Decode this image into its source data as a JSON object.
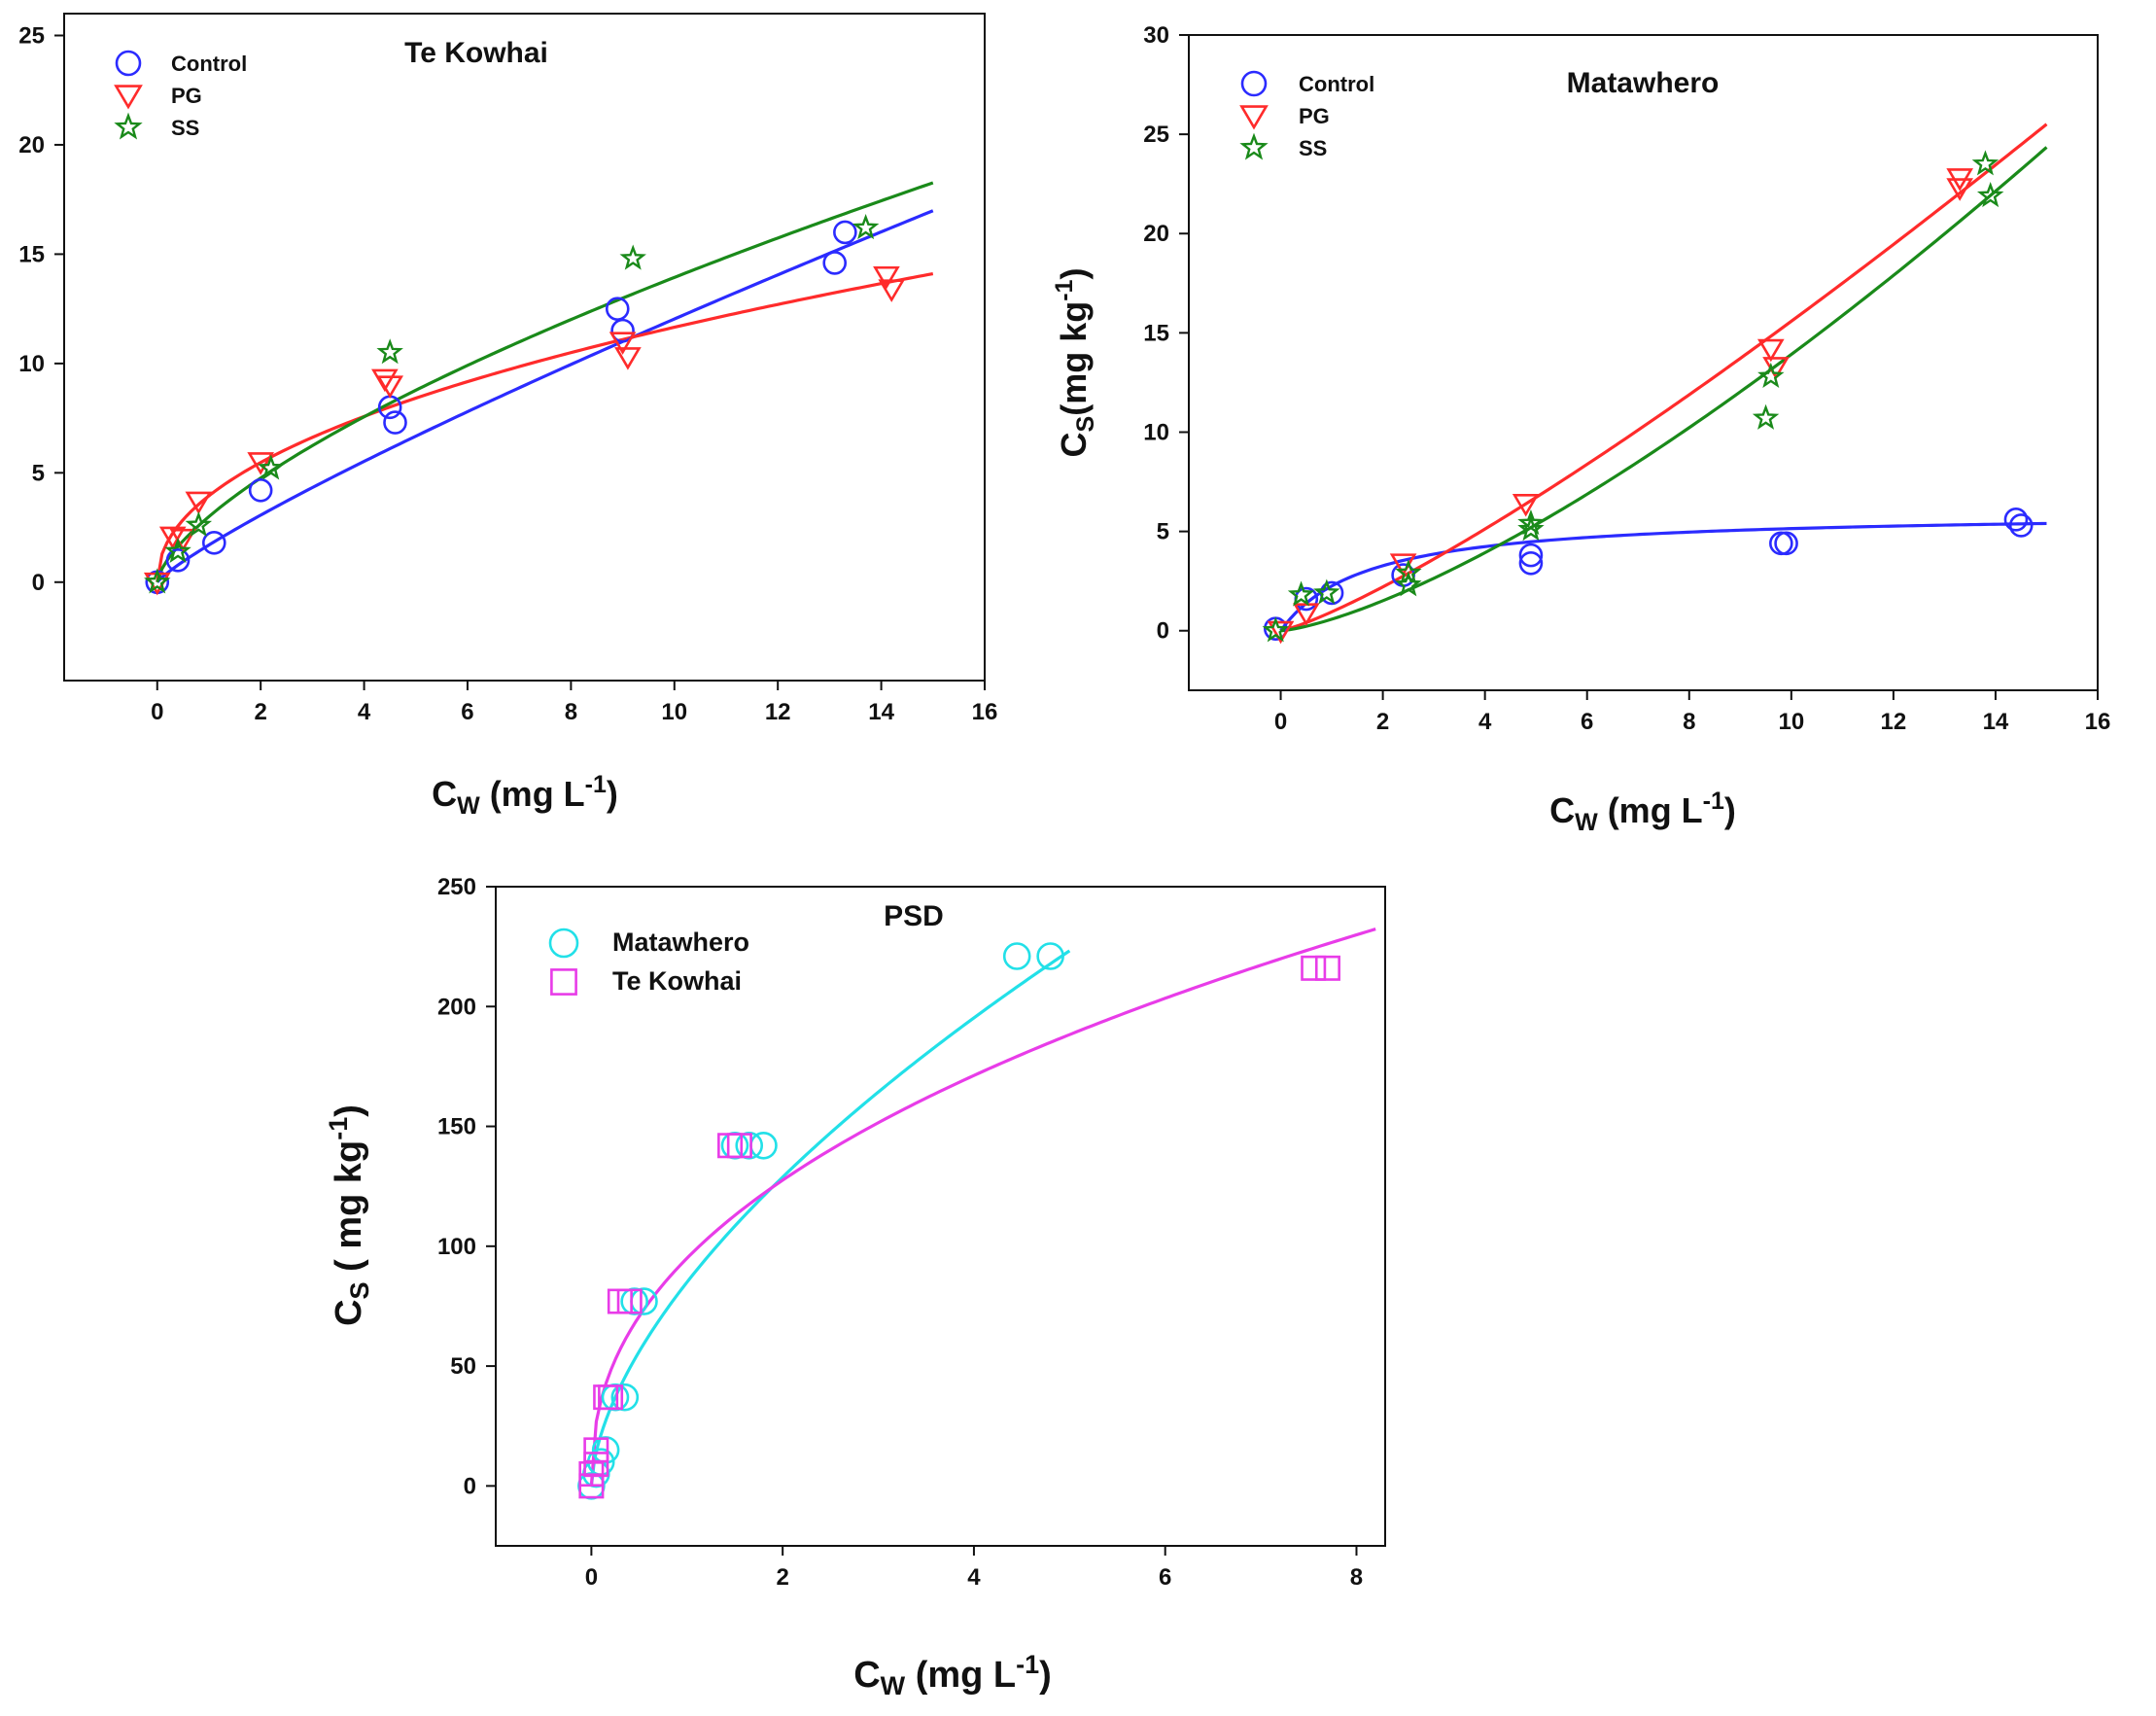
{
  "chart_data": [
    {
      "type": "scatter",
      "title": "Te Kowhai",
      "xlabel": {
        "main": "C",
        "sub": "W",
        "unit": " (mg L",
        "exp": "-1",
        "close": ")"
      },
      "ylabel": null,
      "xlim": [
        -1.8,
        16
      ],
      "ylim": [
        -4.5,
        26
      ],
      "xticks": [
        0,
        2,
        4,
        6,
        8,
        10,
        12,
        14,
        16
      ],
      "yticks": [
        0,
        5,
        10,
        15,
        20,
        25
      ],
      "legend": "top-left",
      "series": [
        {
          "name": "Control",
          "color": "#2b2bff",
          "marker": "circle",
          "points": [
            [
              0,
              0
            ],
            [
              0.4,
              1.0
            ],
            [
              1.1,
              1.8
            ],
            [
              2.0,
              4.2
            ],
            [
              4.5,
              8.0
            ],
            [
              4.6,
              7.3
            ],
            [
              8.9,
              12.5
            ],
            [
              9.0,
              11.5
            ],
            [
              13.1,
              14.6
            ],
            [
              13.3,
              16.0
            ]
          ],
          "fit": {
            "model": "power",
            "K": 1.7,
            "n": 0.85,
            "xmax": 15
          }
        },
        {
          "name": "PG",
          "color": "#ff2b2b",
          "marker": "triangle-down",
          "points": [
            [
              0,
              0
            ],
            [
              0.3,
              2.1
            ],
            [
              0.5,
              2.0
            ],
            [
              0.8,
              3.7
            ],
            [
              2.0,
              5.5
            ],
            [
              4.4,
              9.3
            ],
            [
              4.5,
              9.0
            ],
            [
              9.0,
              11.0
            ],
            [
              9.1,
              10.3
            ],
            [
              14.1,
              14.0
            ],
            [
              14.2,
              13.4
            ]
          ],
          "fit": {
            "model": "power",
            "K": 3.95,
            "n": 0.47,
            "xmax": 15
          }
        },
        {
          "name": "SS",
          "color": "#1a8a1a",
          "marker": "star",
          "points": [
            [
              0,
              0
            ],
            [
              0.4,
              1.4
            ],
            [
              0.8,
              2.6
            ],
            [
              2.2,
              5.2
            ],
            [
              4.5,
              10.5
            ],
            [
              9.2,
              14.8
            ],
            [
              13.7,
              16.2
            ]
          ],
          "fit": {
            "model": "power",
            "K": 3.0,
            "n": 0.667,
            "xmax": 15
          }
        }
      ]
    },
    {
      "type": "scatter",
      "title": "Matawhero",
      "xlabel": {
        "main": "C",
        "sub": "W",
        "unit": " (mg L",
        "exp": "-1",
        "close": ")"
      },
      "ylabel": {
        "main": "C",
        "sub": "S",
        "unit": "(mg kg",
        "exp": "-1",
        "close": ")"
      },
      "xlim": [
        -1.8,
        16
      ],
      "ylim": [
        -3,
        30
      ],
      "xticks": [
        0,
        2,
        4,
        6,
        8,
        10,
        12,
        14,
        16
      ],
      "yticks": [
        0,
        5,
        10,
        15,
        20,
        25,
        30
      ],
      "legend": "top-left",
      "series": [
        {
          "name": "Control",
          "color": "#2b2bff",
          "marker": "circle",
          "points": [
            [
              -0.1,
              0.1
            ],
            [
              0.5,
              1.6
            ],
            [
              1.0,
              1.9
            ],
            [
              2.4,
              2.8
            ],
            [
              4.9,
              3.4
            ],
            [
              4.9,
              3.8
            ],
            [
              9.8,
              4.4
            ],
            [
              9.9,
              4.4
            ],
            [
              14.4,
              5.6
            ],
            [
              14.5,
              5.3
            ]
          ],
          "fit": {
            "model": "langmuir",
            "Q": 6.0,
            "b": 0.6,
            "xmax": 15
          }
        },
        {
          "name": "PG",
          "color": "#ff2b2b",
          "marker": "triangle-down",
          "points": [
            [
              0,
              0
            ],
            [
              0.5,
              0.9
            ],
            [
              2.4,
              3.4
            ],
            [
              4.8,
              6.4
            ],
            [
              9.6,
              14.2
            ],
            [
              9.7,
              13.3
            ],
            [
              13.3,
              22.8
            ],
            [
              13.3,
              22.3
            ]
          ],
          "fit": {
            "model": "power",
            "K": 0.95,
            "n": 1.215,
            "xmax": 15
          }
        },
        {
          "name": "SS",
          "color": "#1a8a1a",
          "marker": "star",
          "points": [
            [
              -0.1,
              0
            ],
            [
              0.4,
              1.8
            ],
            [
              0.9,
              1.9
            ],
            [
              2.5,
              2.3
            ],
            [
              2.5,
              2.9
            ],
            [
              4.9,
              5.1
            ],
            [
              4.9,
              5.4
            ],
            [
              9.5,
              10.7
            ],
            [
              9.6,
              12.8
            ],
            [
              13.8,
              23.5
            ],
            [
              13.9,
              21.9
            ]
          ],
          "fit": {
            "model": "power",
            "K": 0.58,
            "n": 1.38,
            "xmax": 15
          }
        }
      ]
    },
    {
      "type": "scatter",
      "title": "PSD",
      "xlabel": {
        "main": "C",
        "sub": "W",
        "unit": " (mg L",
        "exp": "-1",
        "close": ")"
      },
      "ylabel": {
        "main": "C",
        "sub": "S",
        "unit": " ( mg kg",
        "exp": "-1",
        "close": ")"
      },
      "xlim": [
        -1.0,
        8.3
      ],
      "ylim": [
        -25,
        250
      ],
      "xticks": [
        0,
        2,
        4,
        6,
        8
      ],
      "yticks": [
        0,
        50,
        100,
        150,
        200,
        250
      ],
      "legend": "top-left",
      "series": [
        {
          "name": "Matawhero",
          "color": "#22e0e8",
          "marker": "circle",
          "points": [
            [
              0,
              0
            ],
            [
              0.05,
              5
            ],
            [
              0.1,
              10
            ],
            [
              0.15,
              15
            ],
            [
              0.25,
              37
            ],
            [
              0.35,
              37
            ],
            [
              0.45,
              77
            ],
            [
              0.55,
              77
            ],
            [
              1.5,
              142
            ],
            [
              1.65,
              142
            ],
            [
              1.8,
              142
            ],
            [
              4.45,
              221
            ],
            [
              4.8,
              221
            ]
          ],
          "fit": {
            "model": "power",
            "K": 85,
            "n": 0.6,
            "xmax": 5.0
          }
        },
        {
          "name": "Te Kowhai",
          "color": "#e83ce8",
          "marker": "square",
          "points": [
            [
              0,
              0
            ],
            [
              0,
              5
            ],
            [
              0.05,
              9
            ],
            [
              0.05,
              15
            ],
            [
              0.15,
              37
            ],
            [
              0.2,
              37
            ],
            [
              0.3,
              77
            ],
            [
              0.4,
              77
            ],
            [
              1.45,
              142
            ],
            [
              1.55,
              142
            ],
            [
              7.55,
              216
            ],
            [
              7.7,
              216
            ]
          ],
          "fit": {
            "model": "power",
            "K": 95,
            "n": 0.425,
            "xmax": 8.2
          }
        }
      ]
    }
  ]
}
